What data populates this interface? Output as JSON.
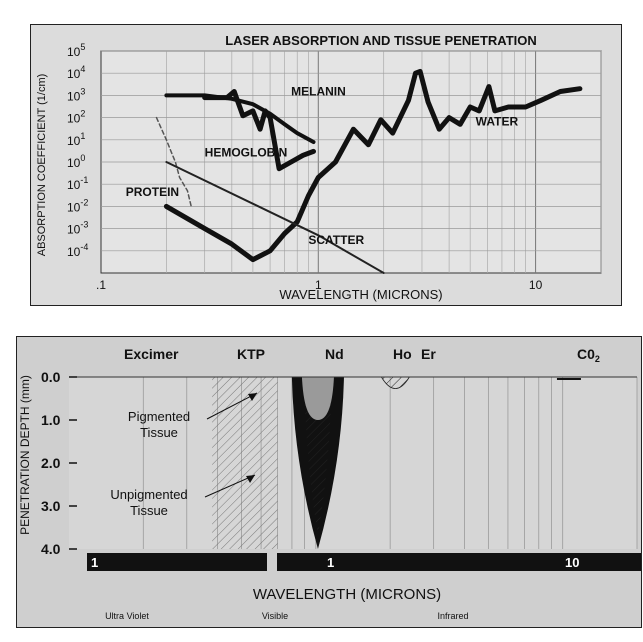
{
  "chart_data": [
    {
      "type": "line",
      "title": "LASER ABSORPTION AND TISSUE PENETRATION",
      "xlabel": "WAVELENGTH (MICRONS)",
      "ylabel": "ABSORPTION COEFFICIENT (1/cm)",
      "xscale": "log",
      "yscale": "log",
      "xlim": [
        0.1,
        20
      ],
      "ylim": [
        1e-05,
        100000
      ],
      "x_ticks": [
        {
          "value": 0.1,
          "label": ".1"
        },
        {
          "value": 1,
          "label": "1"
        },
        {
          "value": 10,
          "label": "10"
        }
      ],
      "y_ticks": [
        {
          "value": 0.0001,
          "label": "10",
          "exp": "-4"
        },
        {
          "value": 0.001,
          "label": "10",
          "exp": "-3"
        },
        {
          "value": 0.01,
          "label": "10",
          "exp": "-2"
        },
        {
          "value": 0.1,
          "label": "10",
          "exp": "-1"
        },
        {
          "value": 1,
          "label": "10",
          "exp": "0"
        },
        {
          "value": 10,
          "label": "10",
          "exp": "1"
        },
        {
          "value": 100,
          "label": "10",
          "exp": "2"
        },
        {
          "value": 1000,
          "label": "10",
          "exp": "3"
        },
        {
          "value": 10000,
          "label": "10",
          "exp": "4"
        },
        {
          "value": 100000,
          "label": "10",
          "exp": "5"
        }
      ],
      "grid": true,
      "series": [
        {
          "name": "MELANIN",
          "stroke": "#111111",
          "width": 4,
          "x": [
            0.2,
            0.3,
            0.4,
            0.5,
            0.6,
            0.7,
            0.8,
            0.95
          ],
          "y": [
            1000,
            1000,
            700,
            400,
            150,
            50,
            20,
            8
          ]
        },
        {
          "name": "HEMOGLOBIN",
          "stroke": "#111111",
          "width": 5,
          "x": [
            0.3,
            0.38,
            0.41,
            0.45,
            0.5,
            0.54,
            0.57,
            0.6,
            0.66,
            0.75,
            0.85,
            0.95
          ],
          "y": [
            800,
            800,
            1500,
            120,
            200,
            30,
            200,
            100,
            0.5,
            1,
            2,
            3
          ]
        },
        {
          "name": "WATER",
          "stroke": "#111111",
          "width": 5,
          "x": [
            0.2,
            0.3,
            0.4,
            0.5,
            0.6,
            0.7,
            0.8,
            0.9,
            1.0,
            1.2,
            1.45,
            1.7,
            1.94,
            2.2,
            2.6,
            2.8,
            2.94,
            3.2,
            3.6,
            4.0,
            4.5,
            5.0,
            5.5,
            6.1,
            6.5,
            7.5,
            9.0,
            10.6,
            13,
            16
          ],
          "y": [
            0.01,
            0.001,
            0.0002,
            4e-05,
            0.0001,
            0.0006,
            0.002,
            0.03,
            0.2,
            1,
            30,
            6,
            80,
            20,
            600,
            10000,
            12000,
            500,
            30,
            100,
            50,
            300,
            200,
            2500,
            200,
            300,
            300,
            600,
            1500,
            2000
          ]
        },
        {
          "name": "PROTEIN",
          "stroke": "#555555",
          "width": 1.5,
          "dash": "4 3",
          "x": [
            0.18,
            0.19,
            0.2,
            0.21,
            0.22,
            0.23,
            0.25,
            0.26
          ],
          "y": [
            100,
            30,
            10,
            3,
            1,
            0.2,
            0.05,
            0.01
          ]
        },
        {
          "name": "SCATTER",
          "stroke": "#222222",
          "width": 2,
          "x": [
            0.2,
            1.0,
            2.0
          ],
          "y": [
            1,
            0.0005,
            1e-05
          ]
        }
      ],
      "labels": [
        {
          "text": "MELANIN",
          "x": 0.75,
          "y": 1000
        },
        {
          "text": "HEMOGLOBIN",
          "x": 0.3,
          "y": 1.8
        },
        {
          "text": "WATER",
          "x": 5.3,
          "y": 45
        },
        {
          "text": "PROTEIN",
          "x": 0.13,
          "y": 0.03
        },
        {
          "text": "SCATTER",
          "x": 0.9,
          "y": 0.0002
        }
      ]
    },
    {
      "type": "area",
      "xlabel": "WAVELENGTH (MICRONS)",
      "ylabel": "PENETRATION DEPTH (mm)",
      "xscale": "log",
      "xlim": [
        0.1,
        20
      ],
      "ylim": [
        0,
        4
      ],
      "y_ticks": [
        "0.0",
        "1.0",
        "2.0",
        "3.0",
        "4.0"
      ],
      "lasers": [
        "Excimer",
        "KTP",
        "Nd",
        "Ho",
        "Er",
        "C0",
        "2"
      ],
      "annotations": [
        "Pigmented",
        "Tissue",
        "Unpigmented",
        "Tissue"
      ],
      "scale_bar": [
        "1",
        "1",
        "10"
      ],
      "regions": [
        "Ultra Violet",
        "Visible",
        "Infrared"
      ],
      "nd_outer_depth": 4.0,
      "nd_inner_depth": 1.0,
      "ho_depth": 0.4
    }
  ]
}
